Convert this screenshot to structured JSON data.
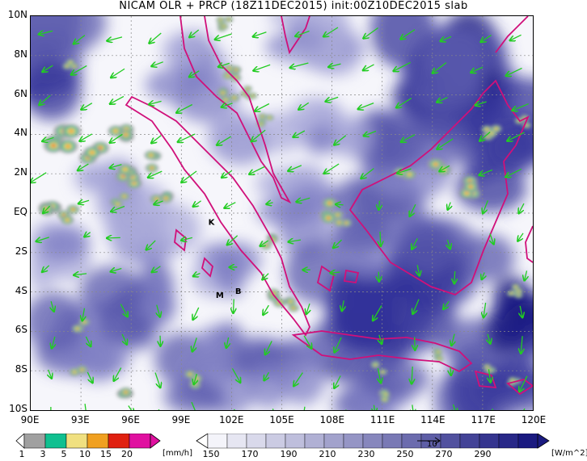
{
  "title": "NICAM OLR + PRCP (18Z11DEC2015) init:00Z10DEC2015 slab",
  "colors": {
    "olr_low": "#f4f4fa",
    "olr_high": "#1a1a80",
    "coast": "#d0107a",
    "vector": "#22cc22",
    "precip": [
      "#a0a0a0",
      "#10c090",
      "#f0e080",
      "#f0a020",
      "#e02010",
      "#e010a0"
    ]
  },
  "map": {
    "lon_range": [
      90,
      120
    ],
    "lat_range": [
      -10,
      10
    ],
    "lat_labels": [
      "10N",
      "8N",
      "6N",
      "4N",
      "2N",
      "EQ",
      "2S",
      "4S",
      "6S",
      "8S",
      "10S"
    ],
    "lon_labels": [
      "90E",
      "93E",
      "96E",
      "99E",
      "102E",
      "105E",
      "108E",
      "111E",
      "114E",
      "117E",
      "120E"
    ],
    "markers": [
      {
        "label": "K",
        "lon": 100.8,
        "lat": -0.6
      },
      {
        "label": "M",
        "lon": 101.3,
        "lat": -4.3
      },
      {
        "label": "B",
        "lon": 102.4,
        "lat": -4.1
      }
    ]
  },
  "precip_bar": {
    "labels": [
      "1",
      "3",
      "5",
      "10",
      "15",
      "20"
    ],
    "unit": "[mm/h]"
  },
  "olr_bar": {
    "labels": [
      "150",
      "170",
      "190",
      "210",
      "230",
      "250",
      "270",
      "290"
    ],
    "unit": "[W/m^2]",
    "vector_ref": "10"
  }
}
